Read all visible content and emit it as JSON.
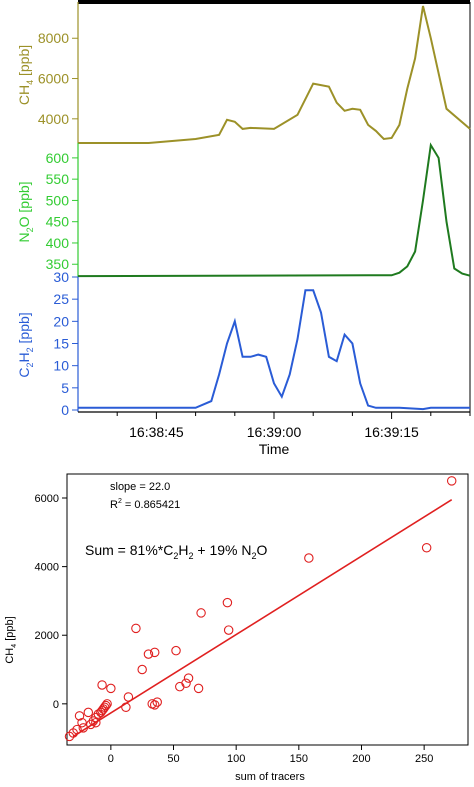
{
  "chart_data": [
    {
      "type": "line",
      "panel": "time-series",
      "xlabel": "Time",
      "x_ticks": [
        "16:38:45",
        "16:39:00",
        "16:39:15"
      ],
      "x_tick_seconds": [
        45,
        60,
        75
      ],
      "xlim_seconds": [
        35,
        85
      ],
      "series": [
        {
          "name": "CH4",
          "ylabel_main": "CH",
          "ylabel_sub": "4",
          "ylabel_unit": " [ppb]",
          "color": "#9c9128",
          "ylim": [
            2800,
            9700
          ],
          "y_ticks": [
            4000,
            6000,
            8000
          ],
          "t": [
            35,
            44,
            50,
            53,
            54,
            55,
            56,
            57,
            60,
            63,
            65,
            67,
            68,
            69,
            70,
            71,
            72,
            73,
            74,
            75,
            76,
            77,
            78,
            79,
            80,
            82,
            85
          ],
          "values": [
            2800,
            2800,
            3000,
            3200,
            3950,
            3850,
            3500,
            3550,
            3500,
            4200,
            5750,
            5600,
            4800,
            4400,
            4500,
            4450,
            3700,
            3400,
            3000,
            3050,
            3700,
            5500,
            7000,
            9600,
            8000,
            4500,
            3500
          ]
        },
        {
          "name": "N2O",
          "ylabel_main": "N",
          "ylabel_sub": "2",
          "ylabel_suffix": "O",
          "ylabel_unit": " [ppb]",
          "color": "#1f7a1f",
          "ylim": [
            320,
            635
          ],
          "y_ticks": [
            350,
            400,
            450,
            500,
            550,
            600
          ],
          "t": [
            35,
            72,
            75,
            76,
            77,
            78,
            79,
            80,
            81,
            82,
            83,
            84,
            85
          ],
          "values": [
            322,
            324,
            324,
            330,
            345,
            380,
            500,
            630,
            600,
            450,
            340,
            328,
            323
          ]
        },
        {
          "name": "C2H2",
          "ylabel_main": "C",
          "ylabel_sub": "2",
          "ylabel_suffix": "H",
          "ylabel_sub2": "2",
          "ylabel_unit": " [ppb]",
          "color": "#2a5cd6",
          "ylim": [
            0,
            30
          ],
          "y_ticks": [
            0,
            5,
            10,
            15,
            20,
            25,
            30
          ],
          "t": [
            35,
            50,
            52,
            53,
            54,
            55,
            56,
            57,
            58,
            59,
            60,
            61,
            62,
            63,
            64,
            65,
            66,
            67,
            68,
            69,
            70,
            71,
            72,
            73,
            76,
            79,
            80,
            85
          ],
          "values": [
            0.5,
            0.5,
            2,
            8,
            15,
            20,
            12,
            12,
            12.5,
            12,
            6,
            3,
            8,
            16,
            27,
            27,
            22,
            12,
            11,
            17,
            15,
            6,
            1,
            0.5,
            0.5,
            0.2,
            0.5,
            0.5
          ]
        }
      ]
    },
    {
      "type": "scatter",
      "panel": "regression",
      "xlabel": "sum of tracers",
      "ylabel_main": "CH",
      "ylabel_sub": "4",
      "ylabel_unit": " [ppb]",
      "color": "#e02020",
      "xlim": [
        -35,
        285
      ],
      "ylim": [
        -1200,
        6700
      ],
      "x_ticks": [
        0,
        50,
        100,
        150,
        200,
        250
      ],
      "y_ticks": [
        0,
        2000,
        4000,
        6000
      ],
      "annotations": {
        "slope": "slope = 22.0",
        "r2_main": "R",
        "r2_sup": "2",
        "r2_value": " = 0.865421",
        "sum_main": "Sum = 81%*C",
        "sum_sub1": "2",
        "sum_mid": "H",
        "sum_sub2": "2",
        "sum_tail": " + 19% N",
        "sum_sub3": "2",
        "sum_end": "O"
      },
      "fit_line": {
        "x": [
          -30,
          272
        ],
        "y": [
          -950,
          5950
        ]
      },
      "points": [
        {
          "x": -33,
          "y": -950
        },
        {
          "x": -30,
          "y": -850
        },
        {
          "x": -27,
          "y": -750
        },
        {
          "x": -25,
          "y": -350
        },
        {
          "x": -23,
          "y": -550
        },
        {
          "x": -22,
          "y": -700
        },
        {
          "x": -18,
          "y": -250
        },
        {
          "x": -16,
          "y": -600
        },
        {
          "x": -14,
          "y": -500
        },
        {
          "x": -12,
          "y": -400
        },
        {
          "x": -10,
          "y": -300
        },
        {
          "x": -8,
          "y": -250
        },
        {
          "x": -7,
          "y": -200
        },
        {
          "x": -6,
          "y": -150
        },
        {
          "x": -5,
          "y": -100
        },
        {
          "x": -4,
          "y": -50
        },
        {
          "x": -3,
          "y": 0
        },
        {
          "x": -12,
          "y": -550
        },
        {
          "x": -7,
          "y": 550
        },
        {
          "x": 0,
          "y": 450
        },
        {
          "x": 12,
          "y": -100
        },
        {
          "x": 14,
          "y": 200
        },
        {
          "x": 20,
          "y": 2200
        },
        {
          "x": 25,
          "y": 1000
        },
        {
          "x": 30,
          "y": 1450
        },
        {
          "x": 35,
          "y": 1500
        },
        {
          "x": 33,
          "y": 0
        },
        {
          "x": 35,
          "y": -30
        },
        {
          "x": 37,
          "y": 50
        },
        {
          "x": 52,
          "y": 1550
        },
        {
          "x": 55,
          "y": 500
        },
        {
          "x": 60,
          "y": 600
        },
        {
          "x": 62,
          "y": 750
        },
        {
          "x": 70,
          "y": 450
        },
        {
          "x": 72,
          "y": 2650
        },
        {
          "x": 93,
          "y": 2950
        },
        {
          "x": 94,
          "y": 2150
        },
        {
          "x": 158,
          "y": 4250
        },
        {
          "x": 252,
          "y": 4550
        },
        {
          "x": 272,
          "y": 6500
        }
      ]
    }
  ]
}
